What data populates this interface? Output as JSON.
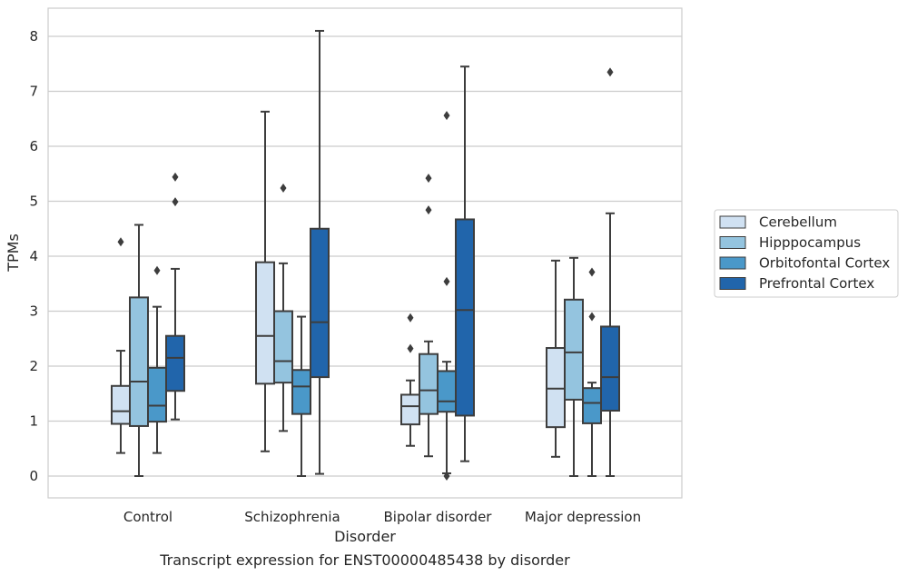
{
  "chart_data": {
    "type": "boxplot",
    "caption": "Transcript expression for ENST00000485438 by disorder",
    "xlabel": "Disorder",
    "ylabel": "TPMs",
    "ylim": [
      -0.4,
      8.5
    ],
    "yticks": [
      0,
      1,
      2,
      3,
      4,
      5,
      6,
      7,
      8
    ],
    "grid": true,
    "legend_position": "right",
    "categories": [
      "Control",
      "Schizophrenia",
      "Bipolar disorder",
      "Major depression"
    ],
    "series": [
      {
        "name": "Cerebellum",
        "color": "#d0e1f2",
        "boxes": [
          {
            "min": 0.42,
            "q1": 0.95,
            "median": 1.18,
            "q3": 1.64,
            "max": 2.28,
            "outliers": [
              4.26
            ]
          },
          {
            "min": 0.45,
            "q1": 1.68,
            "median": 2.55,
            "q3": 3.89,
            "max": 6.63,
            "outliers": []
          },
          {
            "min": 0.55,
            "q1": 0.94,
            "median": 1.27,
            "q3": 1.48,
            "max": 1.74,
            "outliers": [
              2.32,
              2.88
            ]
          },
          {
            "min": 0.35,
            "q1": 0.89,
            "median": 1.59,
            "q3": 2.33,
            "max": 3.92,
            "outliers": []
          }
        ]
      },
      {
        "name": "Hipppocampus",
        "color": "#94c4df",
        "boxes": [
          {
            "min": 0.0,
            "q1": 0.91,
            "median": 1.72,
            "q3": 3.25,
            "max": 4.57,
            "outliers": []
          },
          {
            "min": 0.82,
            "q1": 1.7,
            "median": 2.09,
            "q3": 3.0,
            "max": 3.87,
            "outliers": [
              5.24
            ]
          },
          {
            "min": 0.36,
            "q1": 1.13,
            "median": 1.56,
            "q3": 2.22,
            "max": 2.45,
            "outliers": [
              4.84,
              5.42
            ]
          },
          {
            "min": 0.0,
            "q1": 1.39,
            "median": 2.25,
            "q3": 3.21,
            "max": 3.97,
            "outliers": []
          }
        ]
      },
      {
        "name": "Orbitofontal Cortex",
        "color": "#4a98c9",
        "boxes": [
          {
            "min": 0.42,
            "q1": 0.99,
            "median": 1.28,
            "q3": 1.97,
            "max": 3.08,
            "outliers": [
              3.74
            ]
          },
          {
            "min": 0.0,
            "q1": 1.13,
            "median": 1.63,
            "q3": 1.93,
            "max": 2.9,
            "outliers": []
          },
          {
            "min": 0.05,
            "q1": 1.17,
            "median": 1.36,
            "q3": 1.91,
            "max": 2.08,
            "outliers": [
              3.54,
              6.56,
              0.0
            ]
          },
          {
            "min": 0.0,
            "q1": 0.96,
            "median": 1.33,
            "q3": 1.6,
            "max": 1.7,
            "outliers": [
              2.9,
              3.71
            ]
          }
        ]
      },
      {
        "name": "Prefrontal Cortex",
        "color": "#2165ab",
        "boxes": [
          {
            "min": 1.03,
            "q1": 1.55,
            "median": 2.15,
            "q3": 2.55,
            "max": 3.77,
            "outliers": [
              4.99,
              5.44
            ]
          },
          {
            "min": 0.04,
            "q1": 1.8,
            "median": 2.8,
            "q3": 4.5,
            "max": 8.1,
            "outliers": []
          },
          {
            "min": 0.27,
            "q1": 1.1,
            "median": 3.02,
            "q3": 4.67,
            "max": 7.45,
            "outliers": []
          },
          {
            "min": 0.0,
            "q1": 1.19,
            "median": 1.8,
            "q3": 2.72,
            "max": 4.78,
            "outliers": [
              7.35
            ]
          }
        ]
      }
    ]
  }
}
